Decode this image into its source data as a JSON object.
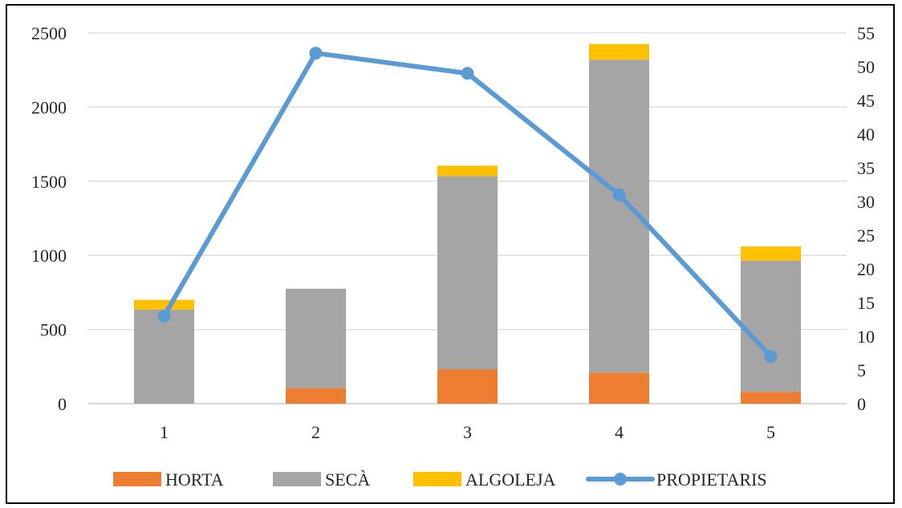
{
  "chart_data": {
    "type": "bar",
    "stacked": true,
    "categories": [
      "1",
      "2",
      "3",
      "4",
      "5"
    ],
    "series": [
      {
        "name": "HORTA",
        "type": "bar",
        "axis": "left",
        "color": "#ED7D31",
        "values": [
          0,
          105,
          230,
          210,
          80
        ]
      },
      {
        "name": "SECÀ",
        "type": "bar",
        "axis": "left",
        "color": "#A5A5A5",
        "values": [
          635,
          670,
          1305,
          2110,
          885
        ]
      },
      {
        "name": "ALGOLEJA",
        "type": "bar",
        "axis": "left",
        "color": "#FFC000",
        "values": [
          65,
          0,
          70,
          105,
          95
        ]
      },
      {
        "name": "PROPIETARIS",
        "type": "line",
        "axis": "right",
        "color": "#5B9BD5",
        "values": [
          13,
          52,
          49,
          31,
          7
        ]
      }
    ],
    "left_axis": {
      "ylim": [
        0,
        2500
      ],
      "ticks": [
        "0",
        "500",
        "1000",
        "1500",
        "2000",
        "2500"
      ]
    },
    "right_axis": {
      "ylim": [
        0,
        55
      ],
      "ticks": [
        "0",
        "5",
        "10",
        "15",
        "20",
        "25",
        "30",
        "35",
        "40",
        "45",
        "50",
        "55"
      ]
    },
    "grid": true,
    "legend_position": "bottom"
  }
}
